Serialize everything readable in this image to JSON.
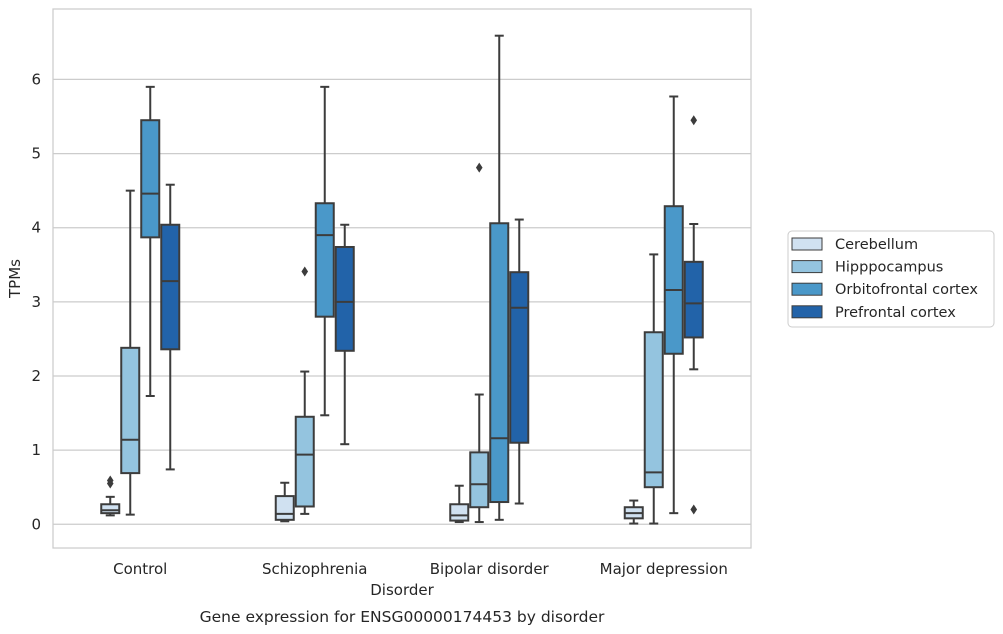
{
  "chart_data": {
    "type": "box",
    "caption": "Gene expression for ENSG00000174453 by disorder",
    "xlabel": "Disorder",
    "ylabel": "TPMs",
    "ylim": [
      -0.32,
      6.95
    ],
    "yticks": [
      0,
      1,
      2,
      3,
      4,
      5,
      6
    ],
    "grid": "horizontal",
    "legend_position": "right",
    "categories": [
      "Control",
      "Schizophrenia",
      "Bipolar disorder",
      "Major depression"
    ],
    "series": [
      {
        "name": "Cerebellum",
        "color": "#d0e1f1",
        "boxes": [
          {
            "whislo": 0.12,
            "q1": 0.15,
            "med": 0.19,
            "q3": 0.27,
            "whishi": 0.37,
            "fliers": [
              0.55,
              0.59
            ]
          },
          {
            "whislo": 0.04,
            "q1": 0.06,
            "med": 0.14,
            "q3": 0.38,
            "whishi": 0.56,
            "fliers": []
          },
          {
            "whislo": 0.03,
            "q1": 0.05,
            "med": 0.12,
            "q3": 0.27,
            "whishi": 0.52,
            "fliers": []
          },
          {
            "whislo": 0.01,
            "q1": 0.08,
            "med": 0.15,
            "q3": 0.23,
            "whishi": 0.32,
            "fliers": []
          }
        ]
      },
      {
        "name": "Hipppocampus",
        "color": "#94c4df",
        "boxes": [
          {
            "whislo": 0.13,
            "q1": 0.69,
            "med": 1.14,
            "q3": 2.38,
            "whishi": 4.5,
            "fliers": []
          },
          {
            "whislo": 0.14,
            "q1": 0.24,
            "med": 0.94,
            "q3": 1.45,
            "whishi": 2.06,
            "fliers": [
              3.41
            ]
          },
          {
            "whislo": 0.03,
            "q1": 0.23,
            "med": 0.54,
            "q3": 0.97,
            "whishi": 1.75,
            "fliers": [
              4.81
            ]
          },
          {
            "whislo": 0.01,
            "q1": 0.5,
            "med": 0.7,
            "q3": 2.59,
            "whishi": 3.64,
            "fliers": []
          }
        ]
      },
      {
        "name": "Orbitofrontal cortex",
        "color": "#4a98c9",
        "boxes": [
          {
            "whislo": 1.73,
            "q1": 3.87,
            "med": 4.46,
            "q3": 5.45,
            "whishi": 5.9,
            "fliers": []
          },
          {
            "whislo": 1.47,
            "q1": 2.8,
            "med": 3.9,
            "q3": 4.33,
            "whishi": 5.9,
            "fliers": []
          },
          {
            "whislo": 0.06,
            "q1": 0.3,
            "med": 1.16,
            "q3": 4.06,
            "whishi": 6.59,
            "fliers": []
          },
          {
            "whislo": 0.15,
            "q1": 2.3,
            "med": 3.16,
            "q3": 4.29,
            "whishi": 5.77,
            "fliers": []
          }
        ]
      },
      {
        "name": "Prefrontal cortex",
        "color": "#2263a9",
        "boxes": [
          {
            "whislo": 0.74,
            "q1": 2.36,
            "med": 3.28,
            "q3": 4.04,
            "whishi": 4.58,
            "fliers": []
          },
          {
            "whislo": 1.08,
            "q1": 2.34,
            "med": 3.0,
            "q3": 3.74,
            "whishi": 4.04,
            "fliers": []
          },
          {
            "whislo": 0.28,
            "q1": 1.1,
            "med": 2.92,
            "q3": 3.4,
            "whishi": 4.11,
            "fliers": []
          },
          {
            "whislo": 2.09,
            "q1": 2.52,
            "med": 2.98,
            "q3": 3.54,
            "whishi": 4.05,
            "fliers": [
              0.2,
              5.45
            ]
          }
        ]
      }
    ]
  }
}
